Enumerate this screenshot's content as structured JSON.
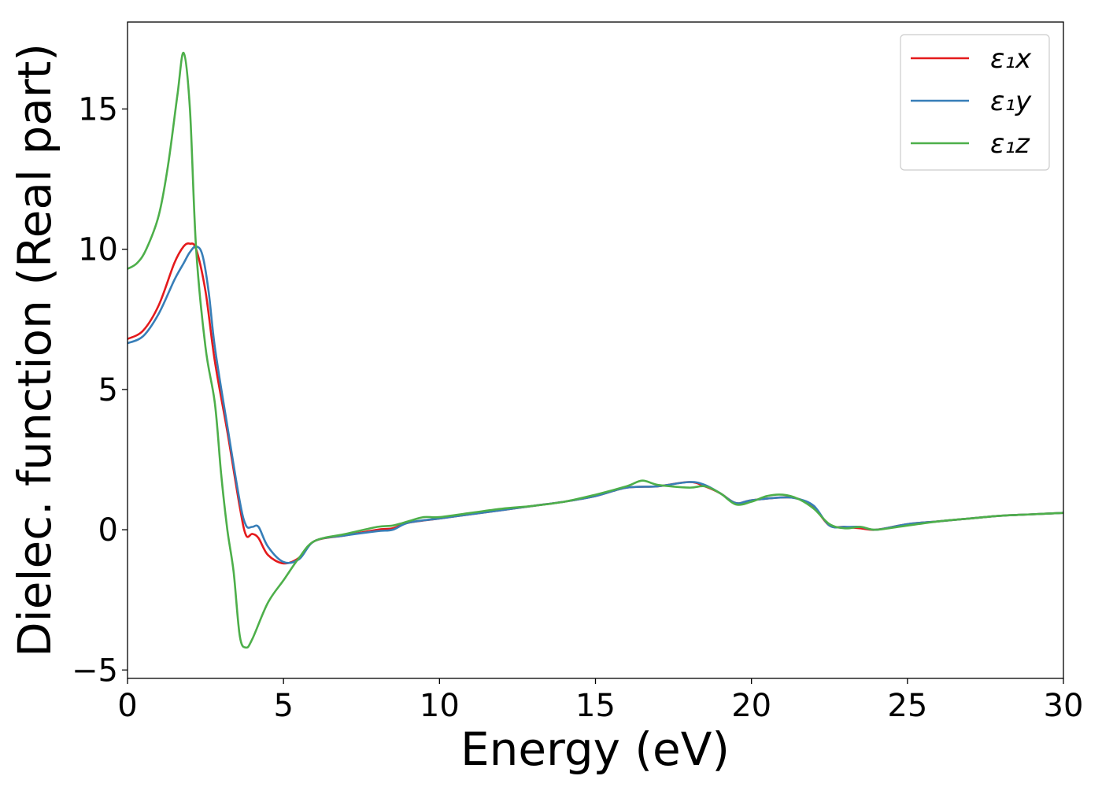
{
  "chart_data": {
    "type": "line",
    "title": "",
    "xlabel": "Energy (eV)",
    "ylabel": "Dielec. function (Real part)",
    "xlim": [
      0,
      30
    ],
    "ylim": [
      -5.3,
      18.1
    ],
    "xticks": [
      0,
      5,
      10,
      15,
      20,
      25,
      30
    ],
    "xtick_labels": [
      "0",
      "5",
      "10",
      "15",
      "20",
      "25",
      "30"
    ],
    "yticks": [
      -5,
      0,
      5,
      10,
      15
    ],
    "ytick_labels": [
      "−5",
      "0",
      "5",
      "10",
      "15"
    ],
    "grid": false,
    "legend_position": "top-right",
    "series": [
      {
        "name": "ε₁x",
        "color": "#e41a1c",
        "x": [
          0,
          0.5,
          1.0,
          1.5,
          1.8,
          2.0,
          2.2,
          2.5,
          2.8,
          3.2,
          3.6,
          3.8,
          4.0,
          4.2,
          4.5,
          5.0,
          5.5,
          6.0,
          7.0,
          8.0,
          8.5,
          9.0,
          10.0,
          11.0,
          12.0,
          13.0,
          14.0,
          15.0,
          16.0,
          17.0,
          18.0,
          18.5,
          19.0,
          19.5,
          20.0,
          21.0,
          21.5,
          22.0,
          22.5,
          23.0,
          23.5,
          24.0,
          25.0,
          26.0,
          27.0,
          28.0,
          29.0,
          30.0
        ],
        "y": [
          6.8,
          7.1,
          8.0,
          9.5,
          10.1,
          10.2,
          10.0,
          8.5,
          6.0,
          3.5,
          0.8,
          -0.2,
          -0.15,
          -0.3,
          -0.9,
          -1.2,
          -1.0,
          -0.4,
          -0.2,
          0.0,
          0.05,
          0.25,
          0.4,
          0.55,
          0.7,
          0.85,
          1.0,
          1.2,
          1.5,
          1.55,
          1.7,
          1.55,
          1.3,
          0.95,
          1.05,
          1.15,
          1.1,
          0.8,
          0.15,
          0.1,
          0.05,
          0.0,
          0.2,
          0.3,
          0.4,
          0.5,
          0.55,
          0.6
        ]
      },
      {
        "name": "ε₁y",
        "color": "#377eb8",
        "x": [
          0,
          0.5,
          1.0,
          1.5,
          1.8,
          2.0,
          2.2,
          2.4,
          2.6,
          2.8,
          3.2,
          3.6,
          3.8,
          4.0,
          4.2,
          4.5,
          5.0,
          5.5,
          6.0,
          7.0,
          8.0,
          8.5,
          9.0,
          10.0,
          11.0,
          12.0,
          13.0,
          14.0,
          15.0,
          16.0,
          17.0,
          18.0,
          18.5,
          19.0,
          19.5,
          20.0,
          21.0,
          21.5,
          22.0,
          22.5,
          23.0,
          23.5,
          24.0,
          25.0,
          26.0,
          27.0,
          28.0,
          29.0,
          30.0
        ],
        "y": [
          6.65,
          6.9,
          7.7,
          8.9,
          9.5,
          9.9,
          10.1,
          9.8,
          8.5,
          6.5,
          3.7,
          1.0,
          0.15,
          0.1,
          0.1,
          -0.6,
          -1.15,
          -1.05,
          -0.4,
          -0.2,
          -0.05,
          0.0,
          0.25,
          0.4,
          0.55,
          0.7,
          0.85,
          1.0,
          1.2,
          1.5,
          1.55,
          1.7,
          1.6,
          1.3,
          0.95,
          1.05,
          1.15,
          1.1,
          0.85,
          0.15,
          0.1,
          0.1,
          0.0,
          0.2,
          0.3,
          0.4,
          0.5,
          0.55,
          0.6
        ]
      },
      {
        "name": "ε₁z",
        "color": "#4daf4a",
        "x": [
          0,
          0.3,
          0.6,
          1.0,
          1.3,
          1.6,
          1.8,
          2.0,
          2.2,
          2.5,
          2.8,
          3.0,
          3.2,
          3.4,
          3.6,
          3.8,
          4.0,
          4.5,
          5.0,
          5.5,
          6.0,
          7.0,
          8.0,
          8.5,
          9.0,
          9.5,
          10.0,
          11.0,
          12.0,
          13.0,
          14.0,
          15.0,
          16.0,
          16.5,
          17.0,
          18.0,
          18.5,
          19.0,
          19.5,
          20.0,
          20.5,
          21.0,
          21.5,
          22.0,
          22.5,
          23.0,
          23.5,
          24.0,
          25.0,
          26.0,
          27.0,
          28.0,
          29.0,
          30.0
        ],
        "y": [
          9.3,
          9.5,
          10.0,
          11.2,
          13.0,
          15.5,
          17.0,
          15.0,
          10.0,
          6.5,
          4.5,
          2.0,
          0.0,
          -1.5,
          -3.8,
          -4.2,
          -3.9,
          -2.6,
          -1.8,
          -1.0,
          -0.4,
          -0.15,
          0.1,
          0.15,
          0.3,
          0.45,
          0.45,
          0.6,
          0.75,
          0.85,
          1.0,
          1.25,
          1.55,
          1.75,
          1.6,
          1.5,
          1.55,
          1.3,
          0.9,
          1.0,
          1.2,
          1.25,
          1.1,
          0.75,
          0.2,
          0.05,
          0.1,
          0.0,
          0.15,
          0.3,
          0.4,
          0.5,
          0.55,
          0.6
        ]
      }
    ]
  }
}
